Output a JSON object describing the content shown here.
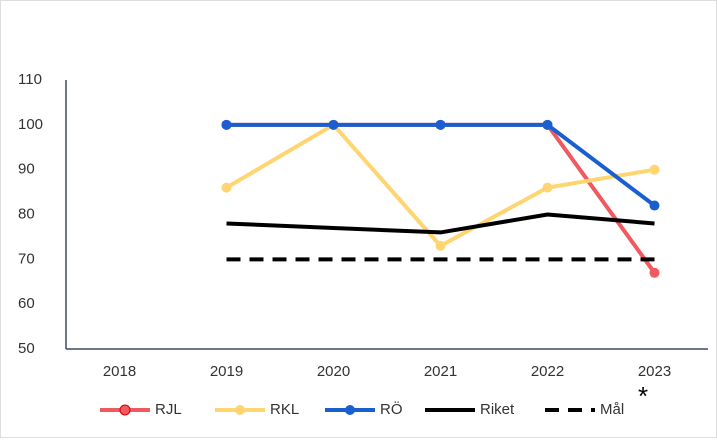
{
  "chart_data": {
    "type": "line",
    "categories": [
      "2018",
      "2019",
      "2020",
      "2021",
      "2022",
      "2023"
    ],
    "series": [
      {
        "name": "RJL",
        "color": "#f0595f",
        "marker": true,
        "dashed": false,
        "values": [
          null,
          100,
          100,
          100,
          100,
          67
        ]
      },
      {
        "name": "RKL",
        "color": "#ffd572",
        "marker": true,
        "dashed": false,
        "values": [
          null,
          86,
          100,
          73,
          86,
          90
        ]
      },
      {
        "name": "RÖ",
        "color": "#1a5fd0",
        "marker": true,
        "dashed": false,
        "values": [
          null,
          100,
          100,
          100,
          100,
          82
        ]
      },
      {
        "name": "Riket",
        "color": "#000000",
        "marker": false,
        "dashed": false,
        "values": [
          null,
          78,
          77,
          76,
          80,
          78
        ]
      },
      {
        "name": "Mål",
        "color": "#000000",
        "marker": false,
        "dashed": true,
        "values": [
          null,
          70,
          70,
          70,
          70,
          70
        ]
      }
    ],
    "ylim": [
      50,
      110
    ],
    "yticks": [
      50,
      60,
      70,
      80,
      90,
      100,
      110
    ],
    "annotation": "*",
    "grid": false,
    "legend": "bottom"
  }
}
